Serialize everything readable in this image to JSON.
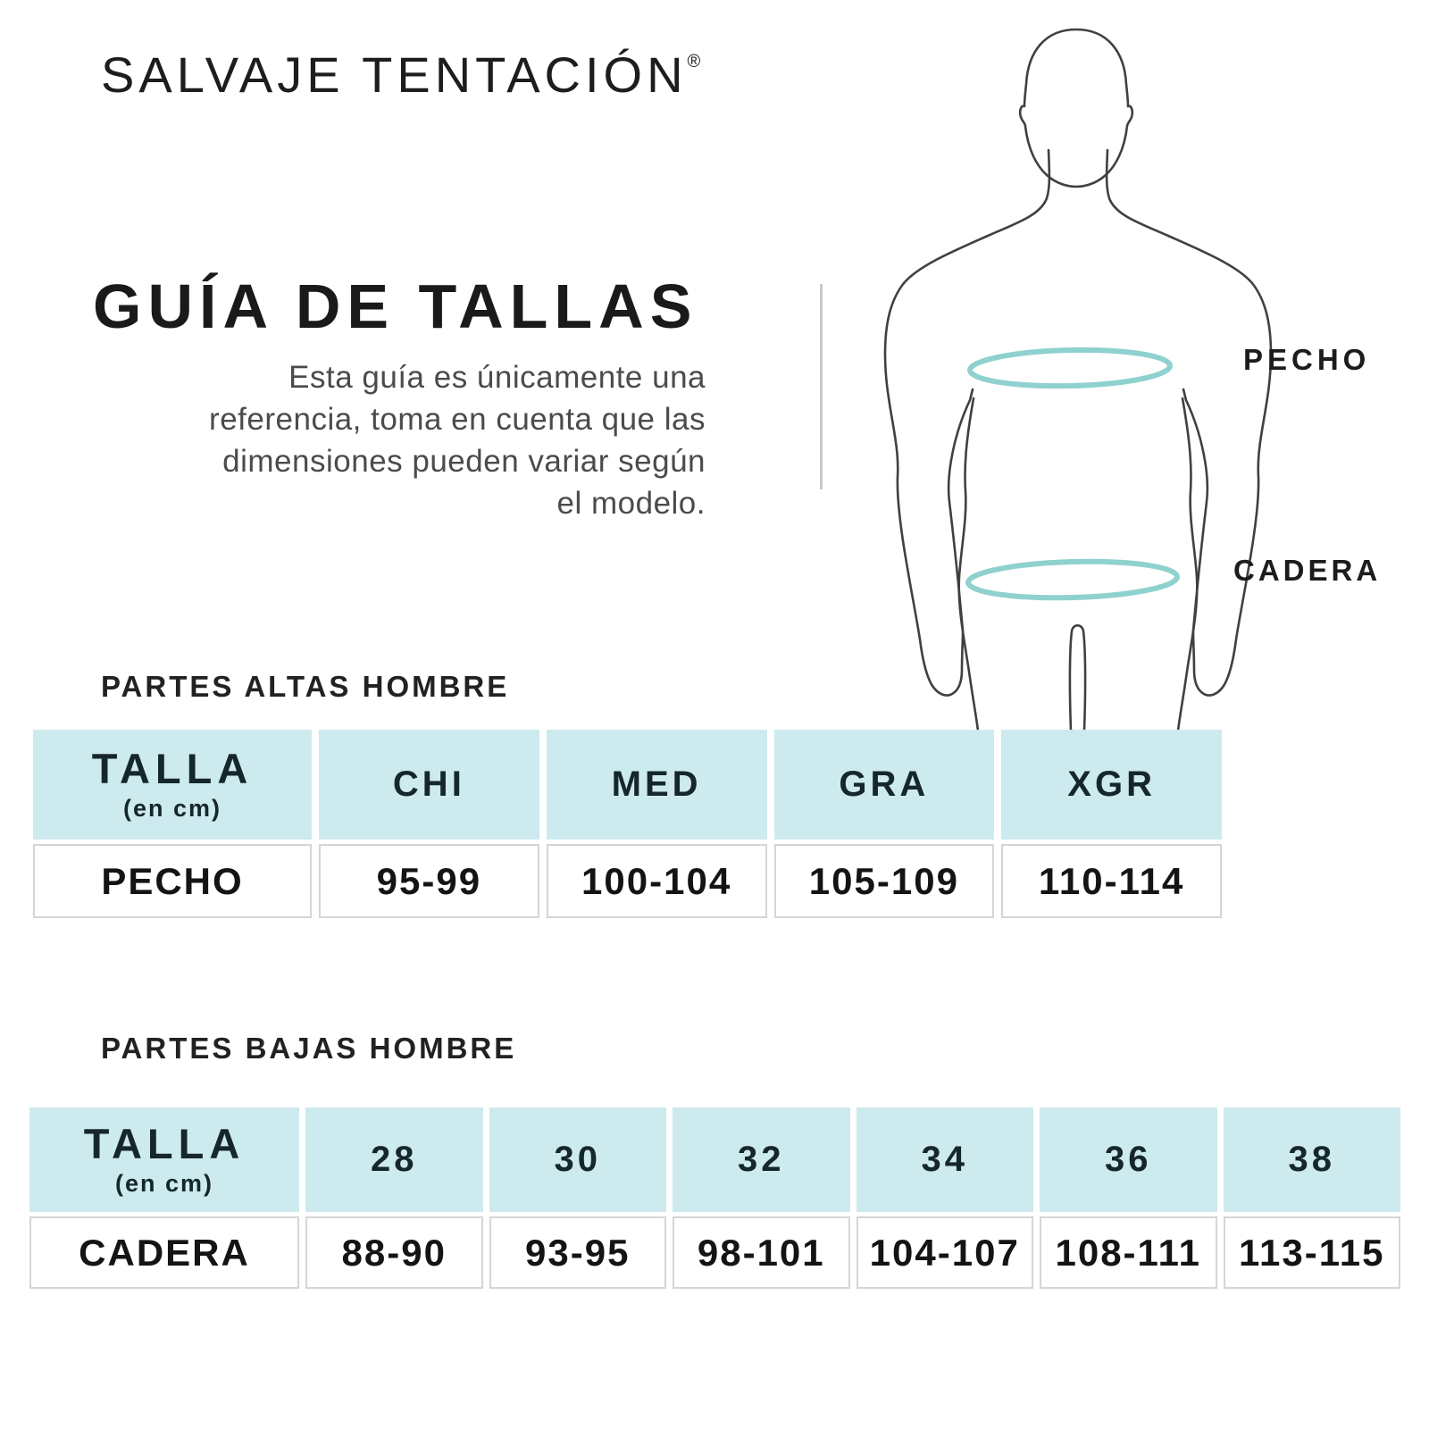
{
  "brand": {
    "name": "SALVAJE TENTACIÓN",
    "registered": "®"
  },
  "intro": {
    "title": "GUÍA DE TALLAS",
    "lines": [
      "Esta guía es únicamente una",
      "referencia, toma en cuenta que las",
      "dimensiones pueden variar según",
      "el modelo."
    ]
  },
  "figure": {
    "chest_label": "PECHO",
    "hip_label": "CADERA"
  },
  "tables": [
    {
      "section_title": "PARTES ALTAS HOMBRE",
      "size_header": {
        "main": "TALLA",
        "sub": "(en cm)"
      },
      "columns": [
        "CHI",
        "MED",
        "GRA",
        "XGR"
      ],
      "rows": [
        {
          "label": "PECHO",
          "values": [
            "95-99",
            "100-104",
            "105-109",
            "110-114"
          ]
        }
      ]
    },
    {
      "section_title": "PARTES BAJAS HOMBRE",
      "size_header": {
        "main": "TALLA",
        "sub": "(en cm)"
      },
      "columns": [
        "28",
        "30",
        "32",
        "34",
        "36",
        "38"
      ],
      "rows": [
        {
          "label": "CADERA",
          "values": [
            "88-90",
            "93-95",
            "98-101",
            "104-107",
            "108-111",
            "113-115"
          ]
        }
      ]
    }
  ],
  "colors": {
    "header_fill": "#cdeaef",
    "measure_line": "#8fd1cf",
    "silhouette": "#404040",
    "divider": "#c7c7c7",
    "cell_border": "#d5d5d5",
    "text_dark": "#1d1d1d",
    "text_gray": "#4b4b4b"
  }
}
